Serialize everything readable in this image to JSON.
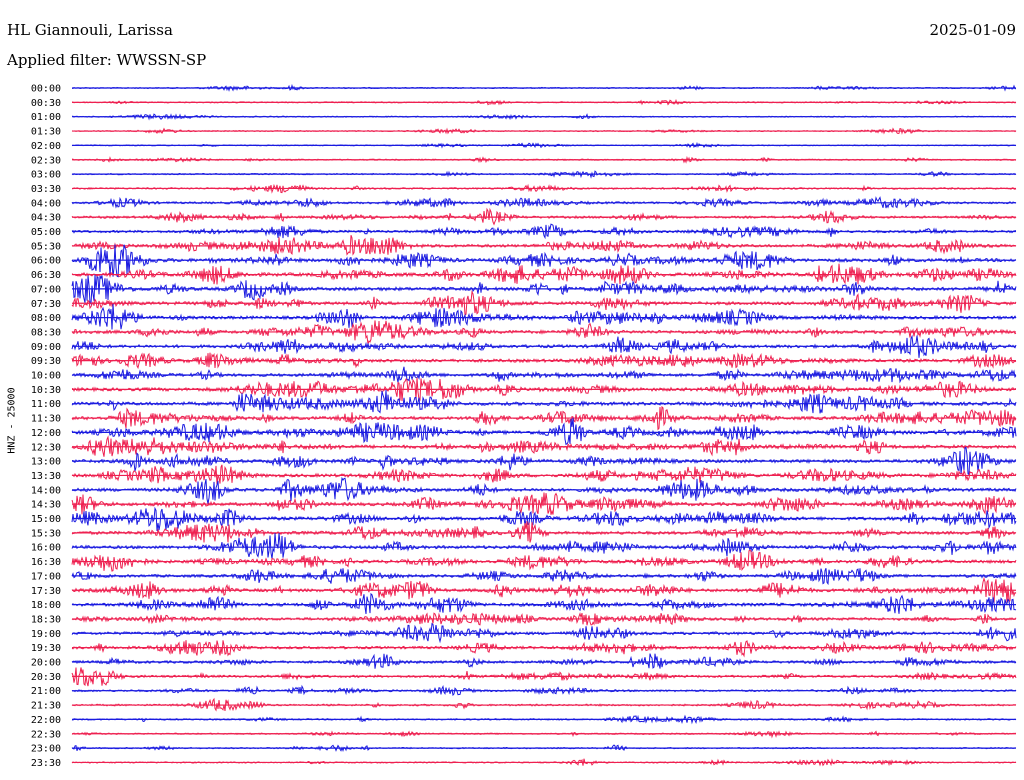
{
  "header": {
    "station": "HL Giannouli, Larissa",
    "date": "2025-01-09",
    "filter": "Applied filter: WWSSN-SP"
  },
  "axis": {
    "ylabel": "HNZ - 25000"
  },
  "colors": {
    "blue": "#1a1ae0",
    "red": "#ee2050",
    "background": "#ffffff"
  },
  "rows": [
    {
      "label": "00:00",
      "color": "blue",
      "activity": 0.15
    },
    {
      "label": "00:30",
      "color": "red",
      "activity": 0.15
    },
    {
      "label": "01:00",
      "color": "blue",
      "activity": 0.12
    },
    {
      "label": "01:30",
      "color": "red",
      "activity": 0.12
    },
    {
      "label": "02:00",
      "color": "blue",
      "activity": 0.08
    },
    {
      "label": "02:30",
      "color": "red",
      "activity": 0.2
    },
    {
      "label": "03:00",
      "color": "blue",
      "activity": 0.2
    },
    {
      "label": "03:30",
      "color": "red",
      "activity": 0.3
    },
    {
      "label": "04:00",
      "color": "blue",
      "activity": 0.45
    },
    {
      "label": "04:30",
      "color": "red",
      "activity": 0.5
    },
    {
      "label": "05:00",
      "color": "blue",
      "activity": 0.55
    },
    {
      "label": "05:30",
      "color": "red",
      "activity": 0.75
    },
    {
      "label": "06:00",
      "color": "blue",
      "activity": 0.9
    },
    {
      "label": "06:30",
      "color": "red",
      "activity": 0.95
    },
    {
      "label": "07:00",
      "color": "blue",
      "activity": 0.9
    },
    {
      "label": "07:30",
      "color": "red",
      "activity": 0.8
    },
    {
      "label": "08:00",
      "color": "blue",
      "activity": 0.8
    },
    {
      "label": "08:30",
      "color": "red",
      "activity": 0.85
    },
    {
      "label": "09:00",
      "color": "blue",
      "activity": 0.8
    },
    {
      "label": "09:30",
      "color": "red",
      "activity": 0.8
    },
    {
      "label": "10:00",
      "color": "blue",
      "activity": 0.75
    },
    {
      "label": "10:30",
      "color": "red",
      "activity": 0.85
    },
    {
      "label": "11:00",
      "color": "blue",
      "activity": 0.9
    },
    {
      "label": "11:30",
      "color": "red",
      "activity": 0.85
    },
    {
      "label": "12:00",
      "color": "blue",
      "activity": 0.9
    },
    {
      "label": "12:30",
      "color": "red",
      "activity": 0.9
    },
    {
      "label": "13:00",
      "color": "blue",
      "activity": 0.85
    },
    {
      "label": "13:30",
      "color": "red",
      "activity": 0.85
    },
    {
      "label": "14:00",
      "color": "blue",
      "activity": 0.85
    },
    {
      "label": "14:30",
      "color": "red",
      "activity": 0.85
    },
    {
      "label": "15:00",
      "color": "blue",
      "activity": 0.85
    },
    {
      "label": "15:30",
      "color": "red",
      "activity": 0.8
    },
    {
      "label": "16:00",
      "color": "blue",
      "activity": 0.8
    },
    {
      "label": "16:30",
      "color": "red",
      "activity": 0.8
    },
    {
      "label": "17:00",
      "color": "blue",
      "activity": 0.7
    },
    {
      "label": "17:30",
      "color": "red",
      "activity": 0.8
    },
    {
      "label": "18:00",
      "color": "blue",
      "activity": 0.8
    },
    {
      "label": "18:30",
      "color": "red",
      "activity": 0.7
    },
    {
      "label": "19:00",
      "color": "blue",
      "activity": 0.7
    },
    {
      "label": "19:30",
      "color": "red",
      "activity": 0.65
    },
    {
      "label": "20:00",
      "color": "blue",
      "activity": 0.6
    },
    {
      "label": "20:30",
      "color": "red",
      "activity": 0.55
    },
    {
      "label": "21:00",
      "color": "blue",
      "activity": 0.4
    },
    {
      "label": "21:30",
      "color": "red",
      "activity": 0.35
    },
    {
      "label": "22:00",
      "color": "blue",
      "activity": 0.25
    },
    {
      "label": "22:30",
      "color": "red",
      "activity": 0.2
    },
    {
      "label": "23:00",
      "color": "blue",
      "activity": 0.2
    },
    {
      "label": "23:30",
      "color": "red",
      "activity": 0.18
    }
  ]
}
